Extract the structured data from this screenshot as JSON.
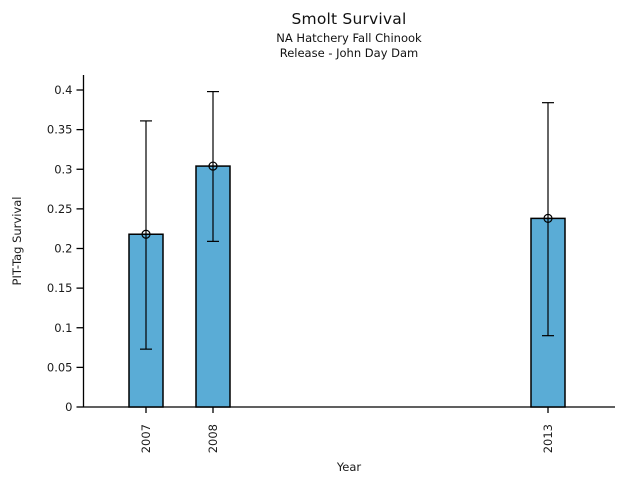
{
  "chart_data": {
    "type": "bar",
    "title": "Smolt Survival",
    "subtitle_lines": [
      "NA Hatchery Fall Chinook",
      "Release - John Day Dam"
    ],
    "xlabel": "Year",
    "ylabel": "PIT-Tag Survival",
    "categories": [
      "2007",
      "2008",
      "2013"
    ],
    "x_years": [
      2007,
      2008,
      2013
    ],
    "values": [
      0.218,
      0.304,
      0.238
    ],
    "error_low": [
      0.073,
      0.209,
      0.09
    ],
    "error_high": [
      0.361,
      0.398,
      0.384
    ],
    "ylim": [
      0,
      0.42
    ],
    "y_ticks": [
      0,
      0.05,
      0.1,
      0.15,
      0.2,
      0.25,
      0.3,
      0.35,
      0.4
    ],
    "y_tick_labels": [
      "0",
      "0.05",
      "0.1",
      "0.15",
      "0.2",
      "0.25",
      "0.3",
      "0.35",
      "0.4"
    ],
    "legend": "none",
    "grid": false,
    "marker": "circle-cross",
    "bar_color": "#5aacd6",
    "bar_edge_color": "#000000",
    "errorbar_color": "#000000",
    "text_color": "#1a1a1a"
  }
}
